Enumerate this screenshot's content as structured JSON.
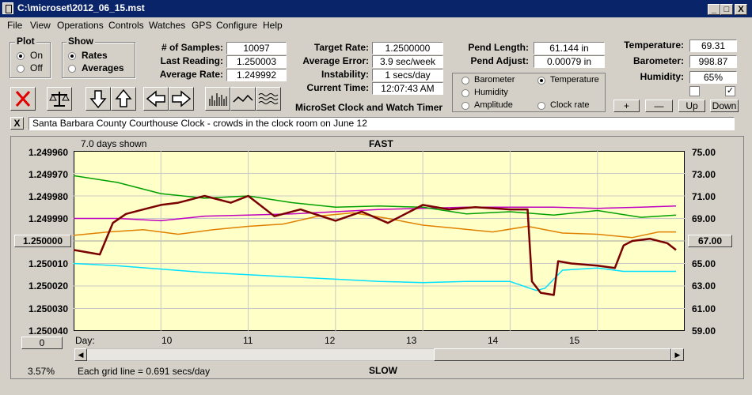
{
  "window": {
    "title": "C:\\microset\\2012_06_15.mst",
    "min_label": "_",
    "max_label": "□",
    "close_label": "X"
  },
  "menu": [
    "File",
    "View",
    "Operations",
    "Controls",
    "Watches",
    "GPS",
    "Configure",
    "Help"
  ],
  "plot_group": {
    "label": "Plot",
    "options": [
      "On",
      "Off"
    ],
    "selected": "On"
  },
  "show_group": {
    "label": "Show",
    "options": [
      "Rates",
      "Averages"
    ],
    "selected": "Rates"
  },
  "stats": {
    "samples_label": "# of Samples:",
    "samples": "10097",
    "last_reading_label": "Last Reading:",
    "last_reading": "1.250003",
    "average_rate_label": "Average Rate:",
    "average_rate": "1.249992",
    "target_rate_label": "Target Rate:",
    "target_rate": "1.2500000",
    "average_error_label": "Average Error:",
    "average_error": "3.9 sec/week",
    "instability_label": "Instability:",
    "instability": "1 secs/day",
    "current_time_label": "Current Time:",
    "current_time": "12:07:43 AM",
    "pend_length_label": "Pend Length:",
    "pend_length": "61.144 in",
    "pend_adjust_label": "Pend Adjust:",
    "pend_adjust": "0.00079 in",
    "temperature_label": "Temperature:",
    "temperature": "69.31",
    "barometer_label": "Barometer:",
    "barometer": "998.87",
    "humidity_label": "Humidity:",
    "humidity": "65%"
  },
  "app_caption": "MicroSet Clock and Watch Timer",
  "sensor_options": [
    {
      "label": "Barometer",
      "color": "#e07000",
      "selected": false
    },
    {
      "label": "Temperature",
      "color": "#00a000",
      "selected": true
    },
    {
      "label": "Humidity",
      "color": "#c000c0",
      "selected": false
    },
    {
      "label": "Clock rate",
      "color": "#000000",
      "selected": false
    },
    {
      "label": "Amplitude",
      "color": "#00c8e0",
      "selected": false
    }
  ],
  "scale_buttons": {
    "plus": "+",
    "minus": "—",
    "up": "Up",
    "down": "Down"
  },
  "checkboxes": [
    {
      "checked": false
    },
    {
      "checked": true
    }
  ],
  "toolbar_icons": [
    "delete-icon",
    "balance-scale-icon",
    "arrow-down-icon",
    "arrow-up-icon",
    "arrow-left-icon",
    "arrow-right-icon",
    "bar-plot-icon",
    "line-plot-icon",
    "wave-plot-icon"
  ],
  "description": {
    "close_label": "X",
    "text": "Santa Barbara County Courthouse Clock - crowds in the clock room on June 12"
  },
  "plot_header": {
    "days_shown": "7.0 days shown",
    "fast": "FAST",
    "slow": "SLOW",
    "grid_note": "Each grid line = 0.691 secs/day",
    "percent": "3.57%",
    "day_label": "Day:"
  },
  "left_center_button": "1.250000",
  "right_center_button": "67.00",
  "bottom_left_button": "0",
  "colors": {
    "plot_bg": "#ffffc8",
    "rate": "#7a0000",
    "temperature": "#00a000",
    "barometer": "#e08000",
    "humidity": "#c000c0",
    "amplitude": "#00e0ff",
    "titlebar": "#0a246a"
  },
  "chart_data": {
    "type": "line",
    "title": "",
    "xlabel": "Day:",
    "x_ticks": [
      "10",
      "11",
      "12",
      "13",
      "14",
      "15"
    ],
    "xlim": [
      9.0,
      16.0
    ],
    "y_left_ticks": [
      "1.249960",
      "1.249970",
      "1.249980",
      "1.249990",
      "1.250000",
      "1.250010",
      "1.250020",
      "1.250030",
      "1.250040"
    ],
    "y_right_ticks": [
      "75.00",
      "73.00",
      "71.00",
      "69.00",
      "67.00",
      "65.00",
      "63.00",
      "61.00",
      "59.00"
    ],
    "ylim_right": [
      59.0,
      75.0
    ],
    "y_left_inverted": true,
    "series": [
      {
        "key": "rate",
        "axis": "left",
        "x": [
          9.0,
          9.3,
          9.45,
          9.6,
          9.8,
          10.0,
          10.2,
          10.5,
          10.8,
          11.0,
          11.3,
          11.6,
          12.0,
          12.3,
          12.6,
          12.9,
          13.0,
          13.3,
          13.6,
          14.0,
          14.2,
          14.25,
          14.35,
          14.5,
          14.55,
          14.7,
          15.0,
          15.2,
          15.3,
          15.4,
          15.6,
          15.8,
          15.9
        ],
        "values": [
          1.250004,
          1.250006,
          1.249992,
          1.249988,
          1.249986,
          1.249984,
          1.249983,
          1.24998,
          1.249983,
          1.24998,
          1.249989,
          1.249986,
          1.249991,
          1.249987,
          1.249992,
          1.249986,
          1.249984,
          1.249986,
          1.249985,
          1.249986,
          1.249986,
          1.250018,
          1.250023,
          1.250024,
          1.250009,
          1.25001,
          1.250011,
          1.250012,
          1.250002,
          1.25,
          1.249999,
          1.250001,
          1.250004
        ]
      },
      {
        "key": "temperature",
        "axis": "right",
        "x": [
          9.0,
          9.5,
          10.0,
          10.5,
          11.0,
          11.5,
          12.0,
          12.5,
          13.0,
          13.5,
          14.0,
          14.5,
          15.0,
          15.5,
          15.9
        ],
        "values": [
          72.8,
          72.2,
          71.2,
          70.8,
          71.0,
          70.4,
          70.0,
          70.1,
          70.0,
          69.4,
          69.6,
          69.3,
          69.7,
          69.1,
          69.3
        ]
      },
      {
        "key": "humidity",
        "axis": "right",
        "x": [
          9.0,
          9.5,
          10.0,
          10.5,
          11.0,
          11.5,
          12.0,
          12.5,
          13.0,
          13.5,
          14.0,
          14.5,
          15.0,
          15.5,
          15.9
        ],
        "values": [
          69.0,
          69.0,
          68.8,
          69.2,
          69.3,
          69.4,
          69.6,
          69.8,
          69.9,
          70.0,
          70.0,
          70.0,
          69.9,
          70.0,
          70.1
        ]
      },
      {
        "key": "barometer",
        "axis": "right",
        "x": [
          9.0,
          9.4,
          9.8,
          10.2,
          10.6,
          11.0,
          11.4,
          11.8,
          12.2,
          12.6,
          13.0,
          13.4,
          13.8,
          14.2,
          14.6,
          15.0,
          15.4,
          15.7,
          15.9
        ],
        "values": [
          67.5,
          67.8,
          68.0,
          67.6,
          68.0,
          68.3,
          68.5,
          69.2,
          69.5,
          69.0,
          68.4,
          68.1,
          67.8,
          68.3,
          67.7,
          67.6,
          67.3,
          67.8,
          67.8
        ]
      },
      {
        "key": "amplitude",
        "axis": "right",
        "x": [
          9.0,
          9.5,
          10.0,
          10.5,
          11.0,
          11.5,
          12.0,
          12.5,
          13.0,
          13.5,
          14.0,
          14.3,
          14.4,
          14.6,
          15.0,
          15.3,
          15.6,
          15.9
        ],
        "values": [
          65.0,
          64.8,
          64.5,
          64.2,
          64.0,
          63.8,
          63.6,
          63.4,
          63.3,
          63.4,
          63.4,
          62.6,
          62.8,
          64.4,
          64.6,
          64.3,
          64.3,
          64.3
        ]
      }
    ]
  }
}
